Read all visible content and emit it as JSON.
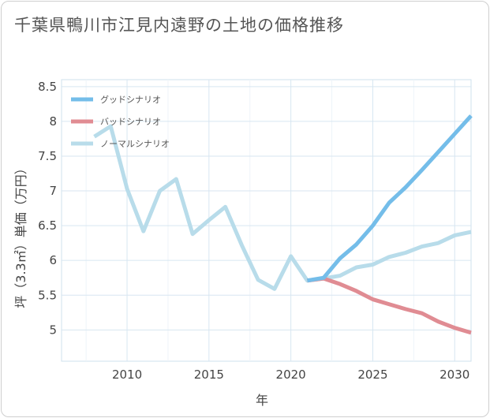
{
  "title": "千葉県鴨川市江見内遠野の土地の価格推移",
  "chart_data": {
    "type": "line",
    "title": "千葉県鴨川市江見内遠野の土地の価格推移",
    "xlabel": "年",
    "ylabel": "坪（3.3㎡）単価（万円）",
    "xlim": [
      2006,
      2031
    ],
    "ylim": [
      4.55,
      8.6
    ],
    "xticks": [
      2010,
      2015,
      2020,
      2025,
      2030
    ],
    "yticks": [
      5,
      5.5,
      6,
      6.5,
      7,
      7.5,
      8,
      8.5
    ],
    "grid": true,
    "legend_position": "top-left",
    "series": [
      {
        "name": "グッドシナリオ",
        "color": "#74bde9",
        "x": [
          2021,
          2022,
          2023,
          2024,
          2025,
          2026,
          2027,
          2028,
          2029,
          2030,
          2031
        ],
        "values": [
          5.71,
          5.75,
          6.03,
          6.23,
          6.5,
          6.83,
          7.05,
          7.3,
          7.56,
          7.82,
          8.08
        ]
      },
      {
        "name": "バッドシナリオ",
        "color": "#e08c93",
        "x": [
          2021,
          2022,
          2023,
          2024,
          2025,
          2026,
          2027,
          2028,
          2029,
          2030,
          2031
        ],
        "values": [
          5.71,
          5.74,
          5.66,
          5.56,
          5.44,
          5.37,
          5.3,
          5.24,
          5.12,
          5.03,
          4.96
        ]
      },
      {
        "name": "ノーマルシナリオ",
        "color": "#b8dcea",
        "x": [
          2008,
          2009,
          2010,
          2011,
          2012,
          2013,
          2014,
          2015,
          2016,
          2017,
          2018,
          2019,
          2020,
          2021,
          2022,
          2023,
          2024,
          2025,
          2026,
          2027,
          2028,
          2029,
          2030,
          2031
        ],
        "values": [
          7.78,
          7.93,
          7.03,
          6.42,
          7.0,
          7.17,
          6.38,
          6.58,
          6.77,
          6.22,
          5.72,
          5.59,
          6.06,
          5.71,
          5.74,
          5.78,
          5.9,
          5.94,
          6.05,
          6.11,
          6.2,
          6.25,
          6.36,
          6.41
        ]
      }
    ]
  }
}
